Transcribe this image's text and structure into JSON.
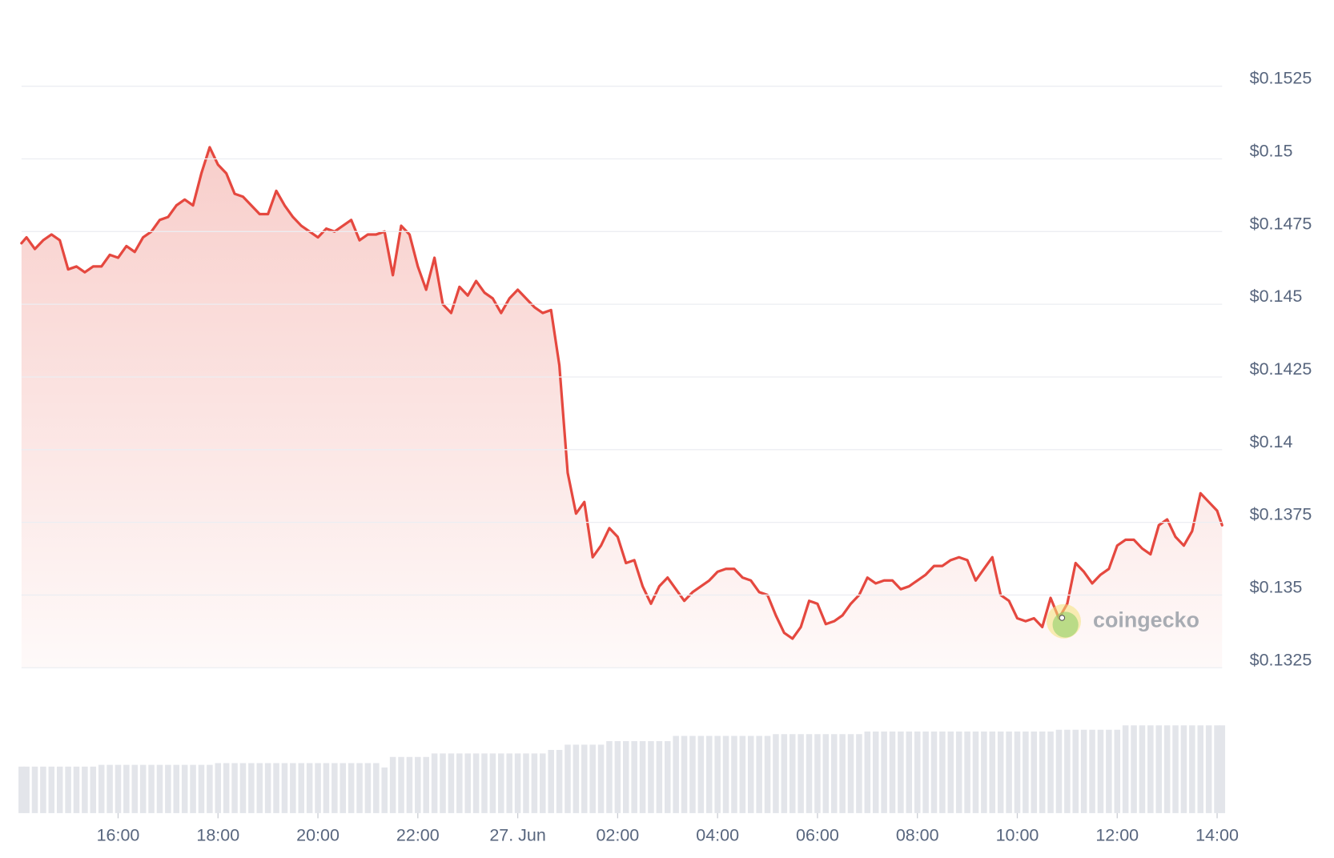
{
  "chart_data": {
    "type": "area",
    "color": "#e5483f",
    "fill_color": "#f5b9b4",
    "grid": true,
    "watermark": "coingecko",
    "ylim": [
      0.1325,
      0.1525
    ],
    "yticks": [
      {
        "value": 0.1525,
        "label": "$0.1525"
      },
      {
        "value": 0.15,
        "label": "$0.15"
      },
      {
        "value": 0.1475,
        "label": "$0.1475"
      },
      {
        "value": 0.145,
        "label": "$0.145"
      },
      {
        "value": 0.1425,
        "label": "$0.1425"
      },
      {
        "value": 0.14,
        "label": "$0.14"
      },
      {
        "value": 0.1375,
        "label": "$0.1375"
      },
      {
        "value": 0.135,
        "label": "$0.135"
      },
      {
        "value": 0.1325,
        "label": "$0.1325"
      }
    ],
    "xlim": [
      "14:04",
      "14:06"
    ],
    "xticks": [
      "16:00",
      "18:00",
      "20:00",
      "22:00",
      {
        "value": "00:00",
        "label": "27. Jun"
      },
      "02:00",
      "04:00",
      "06:00",
      "08:00",
      "10:00",
      "12:00",
      "14:00"
    ],
    "x": [
      "14:04",
      "14:10",
      "14:20",
      "14:30",
      "14:40",
      "14:50",
      "15:00",
      "15:10",
      "15:20",
      "15:30",
      "15:40",
      "15:50",
      "16:00",
      "16:10",
      "16:20",
      "16:30",
      "16:40",
      "16:50",
      "17:00",
      "17:10",
      "17:20",
      "17:30",
      "17:40",
      "17:50",
      "18:00",
      "18:10",
      "18:20",
      "18:30",
      "18:40",
      "18:50",
      "19:00",
      "19:10",
      "19:20",
      "19:30",
      "19:40",
      "19:50",
      "20:00",
      "20:10",
      "20:20",
      "20:30",
      "20:40",
      "20:50",
      "21:00",
      "21:10",
      "21:20",
      "21:30",
      "21:40",
      "21:50",
      "22:00",
      "22:10",
      "22:20",
      "22:30",
      "22:40",
      "22:50",
      "23:00",
      "23:10",
      "23:20",
      "23:30",
      "23:40",
      "23:50",
      "00:00",
      "00:10",
      "00:20",
      "00:30",
      "00:40",
      "00:50",
      "01:00",
      "01:10",
      "01:20",
      "01:30",
      "01:40",
      "01:50",
      "02:00",
      "02:10",
      "02:20",
      "02:30",
      "02:40",
      "02:50",
      "03:00",
      "03:10",
      "03:20",
      "03:30",
      "03:40",
      "03:50",
      "04:00",
      "04:10",
      "04:20",
      "04:30",
      "04:40",
      "04:50",
      "05:00",
      "05:10",
      "05:20",
      "05:30",
      "05:40",
      "05:50",
      "06:00",
      "06:10",
      "06:20",
      "06:30",
      "06:40",
      "06:50",
      "07:00",
      "07:10",
      "07:20",
      "07:30",
      "07:40",
      "07:50",
      "08:00",
      "08:10",
      "08:20",
      "08:30",
      "08:40",
      "08:50",
      "09:00",
      "09:10",
      "09:20",
      "09:30",
      "09:40",
      "09:50",
      "10:00",
      "10:10",
      "10:20",
      "10:30",
      "10:40",
      "10:50",
      "11:00",
      "11:10",
      "11:20",
      "11:30",
      "11:40",
      "11:50",
      "12:00",
      "12:10",
      "12:20",
      "12:30",
      "12:40",
      "12:50",
      "13:00",
      "13:10",
      "13:20",
      "13:30",
      "13:40",
      "13:50",
      "14:00",
      "14:06"
    ],
    "values": [
      0.1471,
      0.1473,
      0.1469,
      0.1472,
      0.1474,
      0.1472,
      0.1462,
      0.1463,
      0.1461,
      0.1463,
      0.1463,
      0.1467,
      0.1466,
      0.147,
      0.1468,
      0.1473,
      0.1475,
      0.1479,
      0.148,
      0.1484,
      0.1486,
      0.1484,
      0.1495,
      0.1504,
      0.1498,
      0.1495,
      0.1488,
      0.1487,
      0.1484,
      0.1481,
      0.1481,
      0.1489,
      0.1484,
      0.148,
      0.1477,
      0.1475,
      0.1473,
      0.1476,
      0.1475,
      0.1477,
      0.1479,
      0.1472,
      0.1474,
      0.1474,
      0.1475,
      0.146,
      0.1477,
      0.1474,
      0.1463,
      0.1455,
      0.1466,
      0.145,
      0.1447,
      0.1456,
      0.1453,
      0.1458,
      0.1454,
      0.1452,
      0.1447,
      0.1452,
      0.1455,
      0.1452,
      0.1449,
      0.1447,
      0.1448,
      0.1429,
      0.1392,
      0.1378,
      0.1382,
      0.1363,
      0.1367,
      0.1373,
      0.137,
      0.1361,
      0.1362,
      0.1353,
      0.1347,
      0.1353,
      0.1356,
      0.1352,
      0.1348,
      0.1351,
      0.1353,
      0.1355,
      0.1358,
      0.1359,
      0.1359,
      0.1356,
      0.1355,
      0.1351,
      0.135,
      0.1343,
      0.1337,
      0.1335,
      0.1339,
      0.1348,
      0.1347,
      0.134,
      0.1341,
      0.1343,
      0.1347,
      0.135,
      0.1356,
      0.1354,
      0.1355,
      0.1355,
      0.1352,
      0.1353,
      0.1355,
      0.1357,
      0.136,
      0.136,
      0.1362,
      0.1363,
      0.1362,
      0.1355,
      0.1359,
      0.1363,
      0.135,
      0.1348,
      0.1342,
      0.1341,
      0.1342,
      0.1339,
      0.1349,
      0.1342,
      0.1347,
      0.1361,
      0.1358,
      0.1354,
      0.1357,
      0.1359,
      0.1367,
      0.1369,
      0.1369,
      0.1366,
      0.1364,
      0.1374,
      0.1376,
      0.137,
      0.1367,
      0.1372,
      0.1385,
      0.1382,
      0.1379,
      0.1374
    ],
    "volume": {
      "color": "#e3e5ea",
      "values": [
        53,
        53,
        53,
        53,
        53,
        53,
        53,
        53,
        53,
        53,
        55,
        55,
        55,
        55,
        55,
        55,
        55,
        55,
        55,
        55,
        55,
        55,
        55,
        55,
        57,
        57,
        57,
        57,
        57,
        57,
        57,
        57,
        57,
        57,
        57,
        57,
        57,
        57,
        57,
        57,
        57,
        57,
        57,
        57,
        52,
        64,
        64,
        64,
        64,
        64,
        68,
        68,
        68,
        68,
        68,
        68,
        68,
        68,
        68,
        68,
        68,
        68,
        68,
        68,
        72,
        72,
        78,
        78,
        78,
        78,
        78,
        82,
        82,
        82,
        82,
        82,
        82,
        82,
        82,
        88,
        88,
        88,
        88,
        88,
        88,
        88,
        88,
        88,
        88,
        88,
        88,
        90,
        90,
        90,
        90,
        90,
        90,
        90,
        90,
        90,
        90,
        90,
        93,
        93,
        93,
        93,
        93,
        93,
        93,
        93,
        93,
        93,
        93,
        93,
        93,
        93,
        93,
        93,
        93,
        93,
        93,
        93,
        93,
        93,
        93,
        95,
        95,
        95,
        95,
        95,
        95,
        95,
        95,
        100,
        100,
        100,
        100,
        100,
        100,
        100,
        100,
        100,
        100,
        100,
        100,
        100
      ]
    }
  }
}
